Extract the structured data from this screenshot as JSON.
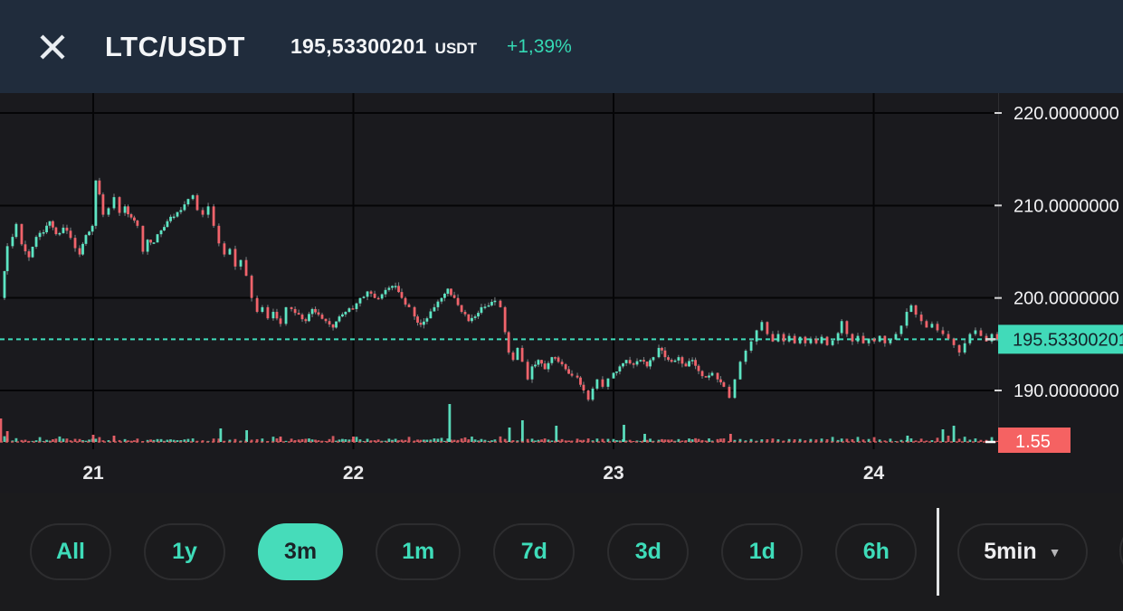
{
  "header": {
    "title": "LTC/USDT",
    "price": "195,53300201",
    "price_unit": "USDT",
    "change": "+1,39%"
  },
  "icons": {
    "close": "close-x",
    "caret_down": "▼"
  },
  "colors": {
    "header_bg": "#202c3c",
    "chart_bg": "#1a1a1e",
    "accent_teal": "#3edcb9",
    "candle_up": "#5de5c3",
    "candle_down": "#f0636b",
    "wick_gray": "#7e8789",
    "grid": "#050507",
    "current_price_line": "#3fdcba",
    "current_price_badge_bg": "#41dab9",
    "current_price_badge_text": "#14232a",
    "volume_line": "#d95f5f",
    "volume_badge_bg": "#f56262",
    "axis_text": "#f2f2f4"
  },
  "chart_data": {
    "type": "candlestick",
    "pair": "LTC/USDT",
    "interval": "5min",
    "x_axis": {
      "tick_values": [
        21,
        22,
        23,
        24
      ],
      "tick_labels": [
        "21",
        "22",
        "23",
        "24"
      ],
      "unit": "day of month"
    },
    "y_axis": {
      "tick_values": [
        220,
        210,
        200,
        190
      ],
      "tick_labels": [
        "220.0000000",
        "210.0000000",
        "200.0000000",
        "190.0000000"
      ],
      "visible_range": [
        183.7,
        222.2
      ]
    },
    "current_price": {
      "value": 195.53300201,
      "label": "195.53300201"
    },
    "volume_baseline_label": "1.55",
    "close_series": [
      [
        20.642,
        200.0
      ],
      [
        20.659,
        202.9
      ],
      [
        20.67,
        205.6
      ],
      [
        20.69,
        206.6
      ],
      [
        20.704,
        208.0
      ],
      [
        20.725,
        205.8
      ],
      [
        20.753,
        204.4
      ],
      [
        20.781,
        206.6
      ],
      [
        20.809,
        207.1
      ],
      [
        20.833,
        208.3
      ],
      [
        20.857,
        206.9
      ],
      [
        20.885,
        207.6
      ],
      [
        20.913,
        206.5
      ],
      [
        20.948,
        204.7
      ],
      [
        20.972,
        206.8
      ],
      [
        20.997,
        207.8
      ],
      [
        21.01,
        212.7
      ],
      [
        21.024,
        211.2
      ],
      [
        21.038,
        209.0
      ],
      [
        21.059,
        209.7
      ],
      [
        21.08,
        210.9
      ],
      [
        21.101,
        209.2
      ],
      [
        21.122,
        209.9
      ],
      [
        21.146,
        208.7
      ],
      [
        21.17,
        207.8
      ],
      [
        21.191,
        205.0
      ],
      [
        21.209,
        206.3
      ],
      [
        21.233,
        206.0
      ],
      [
        21.261,
        207.3
      ],
      [
        21.285,
        208.3
      ],
      [
        21.31,
        208.8
      ],
      [
        21.337,
        209.5
      ],
      [
        21.365,
        210.7
      ],
      [
        21.383,
        211.1
      ],
      [
        21.4,
        209.5
      ],
      [
        21.421,
        209.0
      ],
      [
        21.442,
        209.9
      ],
      [
        21.463,
        207.8
      ],
      [
        21.483,
        205.9
      ],
      [
        21.504,
        204.7
      ],
      [
        21.525,
        205.3
      ],
      [
        21.546,
        203.4
      ],
      [
        21.567,
        204.1
      ],
      [
        21.588,
        202.4
      ],
      [
        21.609,
        200.0
      ],
      [
        21.63,
        198.5
      ],
      [
        21.65,
        199.0
      ],
      [
        21.671,
        197.8
      ],
      [
        21.692,
        198.5
      ],
      [
        21.72,
        197.2
      ],
      [
        21.741,
        199.0
      ],
      [
        21.762,
        198.8
      ],
      [
        21.79,
        198.2
      ],
      [
        21.817,
        197.5
      ],
      [
        21.842,
        198.8
      ],
      [
        21.866,
        198.2
      ],
      [
        21.894,
        197.5
      ],
      [
        21.922,
        196.8
      ],
      [
        21.946,
        198.0
      ],
      [
        21.97,
        198.5
      ],
      [
        21.998,
        198.8
      ],
      [
        22.026,
        200.0
      ],
      [
        22.054,
        200.7
      ],
      [
        22.082,
        200.0
      ],
      [
        22.11,
        200.4
      ],
      [
        22.137,
        201.1
      ],
      [
        22.162,
        201.3
      ],
      [
        22.186,
        200.0
      ],
      [
        22.214,
        199.0
      ],
      [
        22.235,
        198.0
      ],
      [
        22.259,
        197.1
      ],
      [
        22.283,
        197.8
      ],
      [
        22.311,
        199.0
      ],
      [
        22.339,
        200.0
      ],
      [
        22.363,
        201.0
      ],
      [
        22.388,
        200.0
      ],
      [
        22.416,
        198.5
      ],
      [
        22.443,
        197.5
      ],
      [
        22.468,
        198.0
      ],
      [
        22.492,
        199.0
      ],
      [
        22.52,
        199.2
      ],
      [
        22.544,
        199.7
      ],
      [
        22.565,
        199.0
      ],
      [
        22.583,
        196.3
      ],
      [
        22.597,
        194.1
      ],
      [
        22.614,
        193.3
      ],
      [
        22.631,
        194.6
      ],
      [
        22.649,
        193.1
      ],
      [
        22.67,
        191.2
      ],
      [
        22.687,
        192.6
      ],
      [
        22.711,
        193.3
      ],
      [
        22.736,
        192.3
      ],
      [
        22.763,
        193.6
      ],
      [
        22.788,
        193.1
      ],
      [
        22.816,
        192.3
      ],
      [
        22.84,
        191.6
      ],
      [
        22.861,
        191.4
      ],
      [
        22.885,
        190.0
      ],
      [
        22.903,
        189.0
      ],
      [
        22.92,
        190.2
      ],
      [
        22.937,
        191.2
      ],
      [
        22.958,
        190.4
      ],
      [
        22.979,
        191.3
      ],
      [
        23.0,
        191.9
      ],
      [
        23.024,
        192.6
      ],
      [
        23.049,
        193.3
      ],
      [
        23.077,
        192.8
      ],
      [
        23.104,
        193.3
      ],
      [
        23.129,
        192.6
      ],
      [
        23.153,
        193.6
      ],
      [
        23.174,
        194.6
      ],
      [
        23.198,
        193.6
      ],
      [
        23.223,
        193.1
      ],
      [
        23.25,
        193.6
      ],
      [
        23.278,
        192.6
      ],
      [
        23.303,
        193.3
      ],
      [
        23.327,
        192.1
      ],
      [
        23.355,
        191.4
      ],
      [
        23.379,
        191.9
      ],
      [
        23.4,
        191.2
      ],
      [
        23.424,
        190.4
      ],
      [
        23.445,
        189.2
      ],
      [
        23.466,
        191.2
      ],
      [
        23.487,
        193.1
      ],
      [
        23.508,
        194.3
      ],
      [
        23.529,
        195.3
      ],
      [
        23.55,
        196.5
      ],
      [
        23.57,
        197.4
      ],
      [
        23.591,
        196.1
      ],
      [
        23.612,
        195.3
      ],
      [
        23.633,
        196.1
      ],
      [
        23.654,
        195.3
      ],
      [
        23.675,
        195.9
      ],
      [
        23.696,
        195.1
      ],
      [
        23.717,
        195.8
      ],
      [
        23.737,
        195.1
      ],
      [
        23.758,
        195.6
      ],
      [
        23.779,
        195.1
      ],
      [
        23.8,
        195.8
      ],
      [
        23.821,
        194.9
      ],
      [
        23.842,
        195.4
      ],
      [
        23.863,
        196.2
      ],
      [
        23.877,
        197.5
      ],
      [
        23.897,
        196.1
      ],
      [
        23.918,
        195.3
      ],
      [
        23.939,
        195.9
      ],
      [
        23.96,
        195.1
      ],
      [
        23.981,
        195.6
      ],
      [
        24.002,
        195.3
      ],
      [
        24.023,
        195.9
      ],
      [
        24.043,
        195.1
      ],
      [
        24.064,
        195.5
      ],
      [
        24.085,
        196.1
      ],
      [
        24.106,
        197.0
      ],
      [
        24.127,
        198.5
      ],
      [
        24.144,
        199.2
      ],
      [
        24.162,
        198.2
      ],
      [
        24.183,
        197.5
      ],
      [
        24.203,
        196.8
      ],
      [
        24.224,
        197.2
      ],
      [
        24.245,
        196.5
      ],
      [
        24.266,
        196.1
      ],
      [
        24.287,
        195.6
      ],
      [
        24.308,
        194.9
      ],
      [
        24.329,
        194.1
      ],
      [
        24.35,
        195.1
      ],
      [
        24.37,
        196.1
      ],
      [
        24.391,
        196.5
      ],
      [
        24.412,
        195.9
      ],
      [
        24.433,
        195.3
      ],
      [
        24.454,
        196.1
      ],
      [
        24.475,
        195.53
      ]
    ],
    "volume_spikes": [
      [
        20.645,
        26,
        "d"
      ],
      [
        20.67,
        12,
        "d"
      ],
      [
        21.0,
        8,
        "d"
      ],
      [
        21.08,
        7,
        "d"
      ],
      [
        21.49,
        15,
        "u"
      ],
      [
        21.59,
        13,
        "u"
      ],
      [
        21.72,
        6,
        "d"
      ],
      [
        22.0,
        6,
        "d"
      ],
      [
        22.37,
        42,
        "u"
      ],
      [
        22.6,
        16,
        "u"
      ],
      [
        22.65,
        24,
        "u"
      ],
      [
        22.78,
        18,
        "u"
      ],
      [
        23.04,
        19,
        "u"
      ],
      [
        23.12,
        9,
        "u"
      ],
      [
        23.45,
        9,
        "d"
      ],
      [
        24.13,
        7,
        "u"
      ],
      [
        24.266,
        14,
        "u"
      ],
      [
        24.308,
        18,
        "u"
      ]
    ]
  },
  "timeframes": {
    "options": [
      "All",
      "1y",
      "3m",
      "1m",
      "7d",
      "3d",
      "1d",
      "6h"
    ],
    "selected": "3m"
  },
  "interval_selector": {
    "value": "5min"
  }
}
